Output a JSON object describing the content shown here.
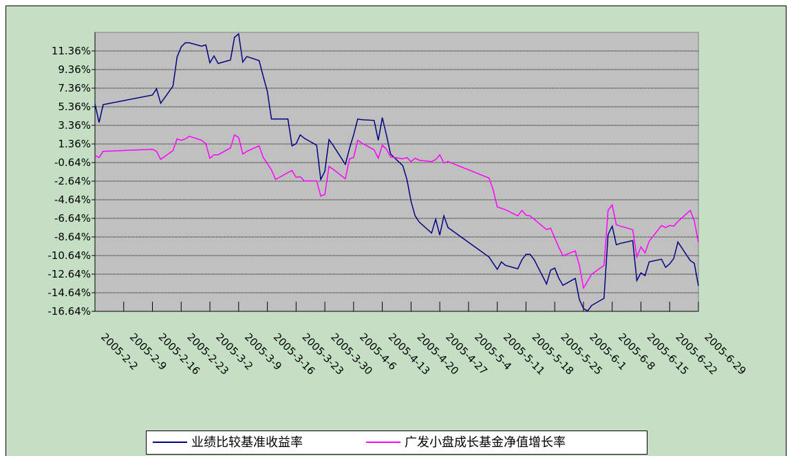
{
  "chart_data": {
    "type": "line",
    "x": [
      "2005-2-2",
      "2005-2-3",
      "2005-2-4",
      "2005-2-16",
      "2005-2-17",
      "2005-2-18",
      "2005-2-21",
      "2005-2-22",
      "2005-2-23",
      "2005-2-24",
      "2005-2-25",
      "2005-2-28",
      "2005-3-1",
      "2005-3-2",
      "2005-3-3",
      "2005-3-4",
      "2005-3-7",
      "2005-3-8",
      "2005-3-9",
      "2005-3-10",
      "2005-3-11",
      "2005-3-14",
      "2005-3-15",
      "2005-3-16",
      "2005-3-17",
      "2005-3-18",
      "2005-3-21",
      "2005-3-22",
      "2005-3-23",
      "2005-3-24",
      "2005-3-25",
      "2005-3-28",
      "2005-3-29",
      "2005-3-30",
      "2005-3-31",
      "2005-4-1",
      "2005-4-4",
      "2005-4-5",
      "2005-4-6",
      "2005-4-7",
      "2005-4-8",
      "2005-4-11",
      "2005-4-12",
      "2005-4-13",
      "2005-4-14",
      "2005-4-15",
      "2005-4-18",
      "2005-4-19",
      "2005-4-20",
      "2005-4-21",
      "2005-4-22",
      "2005-4-25",
      "2005-4-26",
      "2005-4-27",
      "2005-4-28",
      "2005-4-29",
      "2005-5-9",
      "2005-5-10",
      "2005-5-11",
      "2005-5-12",
      "2005-5-13",
      "2005-5-16",
      "2005-5-17",
      "2005-5-18",
      "2005-5-19",
      "2005-5-20",
      "2005-5-23",
      "2005-5-24",
      "2005-5-25",
      "2005-5-26",
      "2005-5-27",
      "2005-5-30",
      "2005-5-31",
      "2005-6-1",
      "2005-6-2",
      "2005-6-3",
      "2005-6-6",
      "2005-6-7",
      "2005-6-8",
      "2005-6-9",
      "2005-6-10",
      "2005-6-13",
      "2005-6-14",
      "2005-6-15",
      "2005-6-16",
      "2005-6-17",
      "2005-6-20",
      "2005-6-21",
      "2005-6-22",
      "2005-6-23",
      "2005-6-24",
      "2005-6-27",
      "2005-6-28",
      "2005-6-29"
    ],
    "series": [
      {
        "name": "业绩比较基准收益率",
        "color": "#000080",
        "values": [
          5.66,
          3.67,
          5.59,
          6.62,
          7.29,
          5.74,
          7.58,
          10.69,
          11.79,
          12.24,
          12.24,
          11.87,
          12.02,
          10.09,
          10.83,
          10.02,
          10.39,
          12.83,
          13.2,
          10.17,
          10.76,
          10.32,
          8.62,
          6.99,
          4.04,
          4.04,
          4.04,
          1.16,
          1.38,
          2.34,
          1.97,
          1.23,
          -2.46,
          -1.57,
          1.83,
          1.23,
          -0.83,
          0.86,
          2.34,
          4.04,
          3.97,
          3.89,
          1.75,
          4.19,
          2.34,
          0.27,
          -0.98,
          -2.46,
          -4.82,
          -6.37,
          -7.04,
          -8.22,
          -6.74,
          -8.44,
          -6.37,
          -7.63,
          -10.8,
          -11.47,
          -12.13,
          -11.32,
          -11.69,
          -12.06,
          -11.1,
          -10.51,
          -10.51,
          -11.1,
          -13.69,
          -12.21,
          -11.99,
          -13.1,
          -13.83,
          -13.1,
          -15.38,
          -16.34,
          -16.6,
          -16.0,
          -15.24,
          -8.37,
          -7.48,
          -9.48,
          -9.33,
          -9.03,
          -13.32,
          -12.5,
          -12.8,
          -11.32,
          -11.03,
          -11.91,
          -11.54,
          -10.95,
          -9.18,
          -11.17,
          -11.47,
          -13.91
        ]
      },
      {
        "name": "广发小盘成长基金净值增长率",
        "color": "#ff00ff",
        "values": [
          0.12,
          -0.1,
          0.57,
          0.79,
          0.57,
          -0.3,
          0.64,
          1.9,
          1.75,
          1.9,
          2.19,
          1.75,
          1.38,
          -0.17,
          0.2,
          0.2,
          0.94,
          2.34,
          2.05,
          0.27,
          0.57,
          1.16,
          -0.1,
          -0.76,
          -1.43,
          -2.46,
          -1.72,
          -1.5,
          -2.24,
          -2.16,
          -2.61,
          -2.61,
          -4.23,
          -4.08,
          -1.06,
          -1.35,
          -2.39,
          -0.24,
          -0.1,
          1.75,
          1.46,
          0.72,
          -0.17,
          1.23,
          0.79,
          -0.03,
          -0.24,
          -0.1,
          -0.54,
          -0.17,
          -0.39,
          -0.54,
          -0.32,
          0.2,
          -0.69,
          -0.54,
          -2.31,
          -3.57,
          -5.41,
          -5.56,
          -5.71,
          -6.37,
          -5.78,
          -6.3,
          -6.37,
          -6.74,
          -7.85,
          -7.7,
          -8.74,
          -9.77,
          -10.66,
          -10.14,
          -11.69,
          -14.13,
          -13.39,
          -12.65,
          -11.69,
          -5.78,
          -5.19,
          -7.33,
          -7.48,
          -7.85,
          -10.8,
          -9.7,
          -10.36,
          -9.1,
          -7.41,
          -7.63,
          -7.41,
          -7.48,
          -6.97,
          -5.78,
          -6.89,
          -9.25
        ]
      }
    ],
    "xlim": [
      "2005-2-2",
      "2005-6-29"
    ],
    "xticks": [
      "2005-2-2",
      "2005-2-9",
      "2005-2-16",
      "2005-2-23",
      "2005-3-2",
      "2005-3-9",
      "2005-3-16",
      "2005-3-23",
      "2005-3-30",
      "2005-4-6",
      "2005-4-13",
      "2005-4-20",
      "2005-4-27",
      "2005-5-4",
      "2005-5-11",
      "2005-5-18",
      "2005-5-25",
      "2005-6-1",
      "2005-6-8",
      "2005-6-15",
      "2005-6-22",
      "2005-6-29"
    ],
    "ylim": [
      -16.64,
      13.36
    ],
    "yticks": [
      {
        "value": -16.64,
        "label": "-16.64%"
      },
      {
        "value": -14.64,
        "label": "-14.64%"
      },
      {
        "value": -12.64,
        "label": "-12.64%"
      },
      {
        "value": -10.64,
        "label": "-10.64%"
      },
      {
        "value": -8.64,
        "label": "-8.64%"
      },
      {
        "value": -6.64,
        "label": "-6.64%"
      },
      {
        "value": -4.64,
        "label": "-4.64%"
      },
      {
        "value": -2.64,
        "label": "-2.64%"
      },
      {
        "value": -0.64,
        "label": "-0.64%"
      },
      {
        "value": 1.36,
        "label": "1.36%"
      },
      {
        "value": 3.36,
        "label": "3.36%"
      },
      {
        "value": 5.36,
        "label": "5.36%"
      },
      {
        "value": 7.36,
        "label": "7.36%"
      },
      {
        "value": 9.36,
        "label": "9.36%"
      },
      {
        "value": 11.36,
        "label": "11.36%"
      }
    ],
    "grid": true,
    "legend": "bottom"
  }
}
